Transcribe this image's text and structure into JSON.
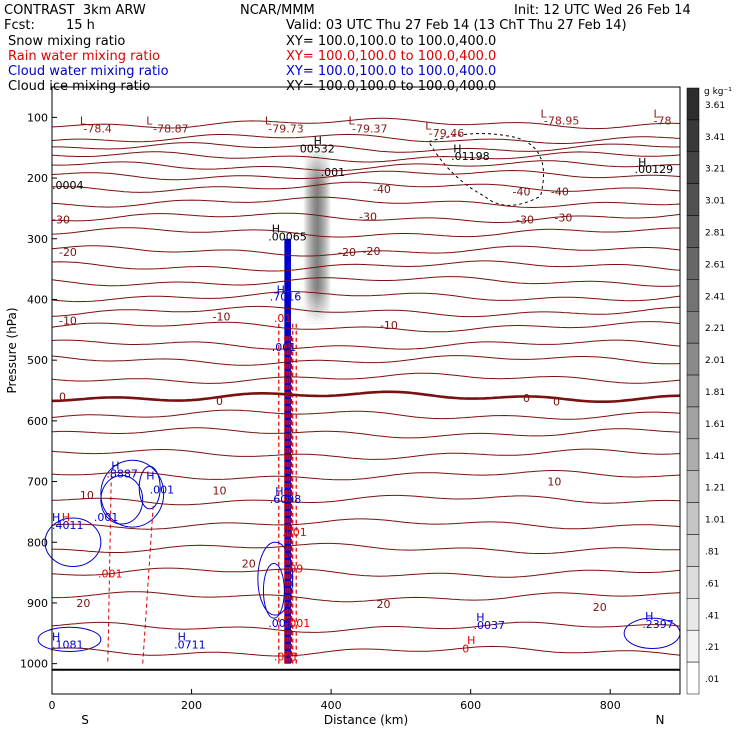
{
  "header": {
    "model": "CONTRAST  3km ARW",
    "center": "NCAR/MMM",
    "init": "Init: 12 UTC Wed 26 Feb 14",
    "fcst_label": "Fcst:",
    "fcst_value": "15 h",
    "valid": "Valid: 03 UTC Thu 27 Feb 14 (13 ChT Thu 27 Feb 14)"
  },
  "legend": [
    {
      "name": "Snow mixing ratio",
      "xy": "XY= 100.0,100.0 to 100.0,400.0",
      "color": "#000000"
    },
    {
      "name": "Rain water mixing ratio",
      "xy": "XY= 100.0,100.0 to 100.0,400.0",
      "color": "#e00000"
    },
    {
      "name": "Cloud water mixing ratio",
      "xy": "XY= 100.0,100.0 to 100.0,400.0",
      "color": "#0000cc"
    },
    {
      "name": "Cloud ice mixing ratio",
      "xy": "XY= 100.0,100.0 to 100.0,400.0",
      "color": "#000000"
    }
  ],
  "chart_data": {
    "type": "contour cross-section",
    "xlabel": "Distance (km)",
    "ylabel": "Pressure (hPa)",
    "xlim": [
      0,
      900
    ],
    "ylim": [
      1050,
      50
    ],
    "x_ticks": [
      0,
      200,
      400,
      600,
      800
    ],
    "y_ticks": [
      100,
      200,
      300,
      400,
      500,
      600,
      700,
      800,
      900,
      1000
    ],
    "x_end_labels": {
      "left": "S",
      "right": "N"
    },
    "colorbar": {
      "unit": "g kg⁻¹",
      "levels": [
        ".01",
        ".21",
        ".41",
        ".61",
        ".81",
        "1.01",
        "1.21",
        "1.41",
        "1.61",
        "1.81",
        "2.01",
        "2.21",
        "2.41",
        "2.61",
        "2.81",
        "3.01",
        "3.21",
        "3.41",
        "3.61"
      ]
    },
    "temperature_contours": [
      {
        "p": 110,
        "label": ""
      },
      {
        "p": 135,
        "label": ""
      },
      {
        "p": 150,
        "label": ""
      },
      {
        "p": 165,
        "label": ""
      },
      {
        "p": 180,
        "label": ""
      },
      {
        "p": 195,
        "label": ""
      },
      {
        "p": 215,
        "label": "-40"
      },
      {
        "p": 240,
        "label": ""
      },
      {
        "p": 265,
        "label": "-30"
      },
      {
        "p": 290,
        "label": ""
      },
      {
        "p": 320,
        "label": "-20"
      },
      {
        "p": 345,
        "label": ""
      },
      {
        "p": 370,
        "label": ""
      },
      {
        "p": 395,
        "label": ""
      },
      {
        "p": 420,
        "label": "-10"
      },
      {
        "p": 445,
        "label": ""
      },
      {
        "p": 475,
        "label": ""
      },
      {
        "p": 500,
        "label": ""
      },
      {
        "p": 530,
        "label": ""
      },
      {
        "p": 560,
        "label": "0",
        "bold": true
      },
      {
        "p": 590,
        "label": ""
      },
      {
        "p": 620,
        "label": ""
      },
      {
        "p": 655,
        "label": ""
      },
      {
        "p": 690,
        "label": "10"
      },
      {
        "p": 730,
        "label": ""
      },
      {
        "p": 770,
        "label": ""
      },
      {
        "p": 810,
        "label": ""
      },
      {
        "p": 850,
        "label": ""
      },
      {
        "p": 890,
        "label": "20"
      },
      {
        "p": 940,
        "label": ""
      },
      {
        "p": 980,
        "label": ""
      }
    ],
    "text_labels": [
      {
        "x": 40,
        "p": 112,
        "t": "L",
        "c": "#8b1a1a"
      },
      {
        "x": 45,
        "p": 125,
        "t": "-78.4",
        "c": "#8b1a1a"
      },
      {
        "x": 135,
        "p": 112,
        "t": "L",
        "c": "#8b1a1a"
      },
      {
        "x": 145,
        "p": 125,
        "t": "-78.87",
        "c": "#8b1a1a"
      },
      {
        "x": 305,
        "p": 112,
        "t": "L",
        "c": "#8b1a1a"
      },
      {
        "x": 310,
        "p": 125,
        "t": "-79.73",
        "c": "#8b1a1a"
      },
      {
        "x": 425,
        "p": 112,
        "t": "L",
        "c": "#8b1a1a"
      },
      {
        "x": 430,
        "p": 125,
        "t": "-79.37",
        "c": "#8b1a1a"
      },
      {
        "x": 535,
        "p": 120,
        "t": "L",
        "c": "#8b1a1a"
      },
      {
        "x": 540,
        "p": 132,
        "t": "-79.46",
        "c": "#8b1a1a"
      },
      {
        "x": 700,
        "p": 100,
        "t": "L",
        "c": "#8b1a1a"
      },
      {
        "x": 705,
        "p": 112,
        "t": "-78.95",
        "c": "#8b1a1a"
      },
      {
        "x": 862,
        "p": 100,
        "t": "L",
        "c": "#8b1a1a"
      },
      {
        "x": 862,
        "p": 112,
        "t": "-78",
        "c": "#8b1a1a"
      },
      {
        "x": 375,
        "p": 145,
        "t": "H",
        "c": "#000"
      },
      {
        "x": 355,
        "p": 158,
        "t": "00532",
        "c": "#000"
      },
      {
        "x": 385,
        "p": 197,
        "t": ".001",
        "c": "#000"
      },
      {
        "x": 575,
        "p": 158,
        "t": "H",
        "c": "#000"
      },
      {
        "x": 572,
        "p": 170,
        "t": ".01198",
        "c": "#000"
      },
      {
        "x": 840,
        "p": 180,
        "t": "H",
        "c": "#000"
      },
      {
        "x": 835,
        "p": 192,
        "t": ".00129",
        "c": "#000"
      },
      {
        "x": 0,
        "p": 218,
        "t": ".0004",
        "c": "#000"
      },
      {
        "x": 315,
        "p": 290,
        "t": "H",
        "c": "#000"
      },
      {
        "x": 310,
        "p": 303,
        "t": ".00065",
        "c": "#000"
      },
      {
        "x": 322,
        "p": 390,
        "t": "H",
        "c": "#0000cc"
      },
      {
        "x": 312,
        "p": 402,
        "t": ".7016",
        "c": "#0000cc"
      },
      {
        "x": 318,
        "p": 437,
        "t": ".01",
        "c": "#e00000"
      },
      {
        "x": 315,
        "p": 485,
        "t": ".001",
        "c": "#0000cc"
      },
      {
        "x": 85,
        "p": 680,
        "t": "H",
        "c": "#0000cc"
      },
      {
        "x": 78,
        "p": 693,
        "t": ".8887",
        "c": "#0000cc"
      },
      {
        "x": 135,
        "p": 697,
        "t": "H",
        "c": "#0000cc"
      },
      {
        "x": 140,
        "p": 720,
        "t": ".001",
        "c": "#0000cc"
      },
      {
        "x": 60,
        "p": 765,
        "t": ".001",
        "c": "#0000cc"
      },
      {
        "x": 0,
        "p": 765,
        "t": "H",
        "c": "#0000cc"
      },
      {
        "x": 14,
        "p": 765,
        "t": "H",
        "c": "#e00000"
      },
      {
        "x": 0,
        "p": 778,
        "t": ".4011",
        "c": "#0000cc"
      },
      {
        "x": 320,
        "p": 722,
        "t": "H",
        "c": "#0000cc"
      },
      {
        "x": 312,
        "p": 735,
        "t": ".6098",
        "c": "#0000cc"
      },
      {
        "x": 330,
        "p": 790,
        "t": ".001",
        "c": "#e00000"
      },
      {
        "x": 335,
        "p": 850,
        "t": ".09",
        "c": "#e00000"
      },
      {
        "x": 66,
        "p": 858,
        "t": ".001",
        "c": "#e00000"
      },
      {
        "x": 310,
        "p": 940,
        "t": ".002",
        "c": "#0000cc"
      },
      {
        "x": 335,
        "p": 940,
        "t": ".001",
        "c": "#e00000"
      },
      {
        "x": 318,
        "p": 995,
        "t": ".001",
        "c": "#e00000"
      },
      {
        "x": 0,
        "p": 962,
        "t": "H",
        "c": "#0000cc"
      },
      {
        "x": 0,
        "p": 975,
        "t": ".1081",
        "c": "#0000cc"
      },
      {
        "x": 180,
        "p": 962,
        "t": "H",
        "c": "#0000cc"
      },
      {
        "x": 175,
        "p": 975,
        "t": ".0711",
        "c": "#0000cc"
      },
      {
        "x": 608,
        "p": 930,
        "t": "H",
        "c": "#0000cc"
      },
      {
        "x": 604,
        "p": 943,
        "t": ".0037",
        "c": "#0000cc"
      },
      {
        "x": 595,
        "p": 968,
        "t": "H",
        "c": "#e00000"
      },
      {
        "x": 588,
        "p": 982,
        "t": "0",
        "c": "#e00000"
      },
      {
        "x": 850,
        "p": 928,
        "t": "H",
        "c": "#0000cc"
      },
      {
        "x": 846,
        "p": 941,
        "t": ".2397",
        "c": "#0000cc"
      }
    ],
    "inline_temp_labels": [
      {
        "x": 0,
        "p": 268,
        "t": "-30"
      },
      {
        "x": 665,
        "p": 268,
        "t": "-30"
      },
      {
        "x": 720,
        "p": 265,
        "t": "-30"
      },
      {
        "x": 460,
        "p": 218,
        "t": "-40"
      },
      {
        "x": 660,
        "p": 222,
        "t": "-40"
      },
      {
        "x": 715,
        "p": 222,
        "t": "-40"
      },
      {
        "x": 440,
        "p": 263,
        "t": "-30"
      },
      {
        "x": 410,
        "p": 322,
        "t": "-20"
      },
      {
        "x": 445,
        "p": 320,
        "t": "-20"
      },
      {
        "x": 10,
        "p": 322,
        "t": "-20"
      },
      {
        "x": 10,
        "p": 435,
        "t": "-10"
      },
      {
        "x": 230,
        "p": 428,
        "t": "-10"
      },
      {
        "x": 470,
        "p": 442,
        "t": "-10"
      },
      {
        "x": 10,
        "p": 560,
        "t": "0"
      },
      {
        "x": 235,
        "p": 567,
        "t": "0"
      },
      {
        "x": 675,
        "p": 562,
        "t": "0"
      },
      {
        "x": 718,
        "p": 568,
        "t": "0"
      },
      {
        "x": 40,
        "p": 722,
        "t": "10"
      },
      {
        "x": 230,
        "p": 715,
        "t": "10"
      },
      {
        "x": 710,
        "p": 700,
        "t": "10"
      },
      {
        "x": 35,
        "p": 900,
        "t": "20"
      },
      {
        "x": 465,
        "p": 902,
        "t": "20"
      },
      {
        "x": 775,
        "p": 907,
        "t": "20"
      },
      {
        "x": 272,
        "p": 835,
        "t": "20"
      }
    ]
  }
}
